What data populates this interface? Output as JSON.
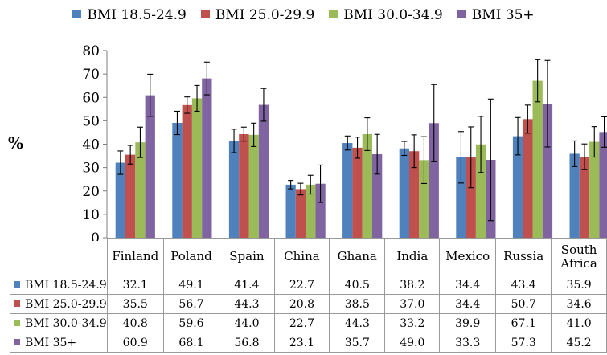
{
  "chart_data": {
    "type": "bar",
    "ylabel": "%",
    "ylim": [
      0,
      80
    ],
    "yticks": [
      0,
      10,
      20,
      30,
      40,
      50,
      60,
      70,
      80
    ],
    "grid": false,
    "legend": "top",
    "error_bars": true,
    "categories": [
      "Finland",
      "Poland",
      "Spain",
      "China",
      "Ghana",
      "India",
      "Mexico",
      "Russia",
      "South Africa"
    ],
    "series": [
      {
        "name": "BMI 18.5-24.9",
        "color": "#4f81bd",
        "values": [
          32.1,
          49.1,
          41.4,
          22.7,
          40.5,
          38.2,
          34.4,
          43.4,
          35.9
        ],
        "err": [
          5,
          5,
          5,
          1.8,
          3,
          3,
          11,
          8,
          5.5
        ]
      },
      {
        "name": "BMI 25.0-29.9",
        "color": "#c0504d",
        "values": [
          35.5,
          56.7,
          44.3,
          20.8,
          38.5,
          37.0,
          34.4,
          50.7,
          34.6
        ],
        "err": [
          4,
          3.5,
          3,
          2.5,
          4.5,
          7,
          13,
          6,
          5.5
        ]
      },
      {
        "name": "BMI 30.0-34.9",
        "color": "#9bbb59",
        "values": [
          40.8,
          59.6,
          44.0,
          22.7,
          44.3,
          33.2,
          39.9,
          67.1,
          41.0
        ],
        "err": [
          6.5,
          5.5,
          5,
          4,
          7,
          10,
          12,
          9,
          6.5
        ]
      },
      {
        "name": "BMI 35+",
        "color": "#8064a2",
        "values": [
          60.9,
          68.1,
          56.8,
          23.1,
          35.7,
          49.0,
          33.3,
          57.3,
          45.2
        ],
        "err": [
          9,
          7,
          7,
          8,
          8.5,
          16.5,
          26,
          18.5,
          6.5
        ]
      }
    ]
  }
}
